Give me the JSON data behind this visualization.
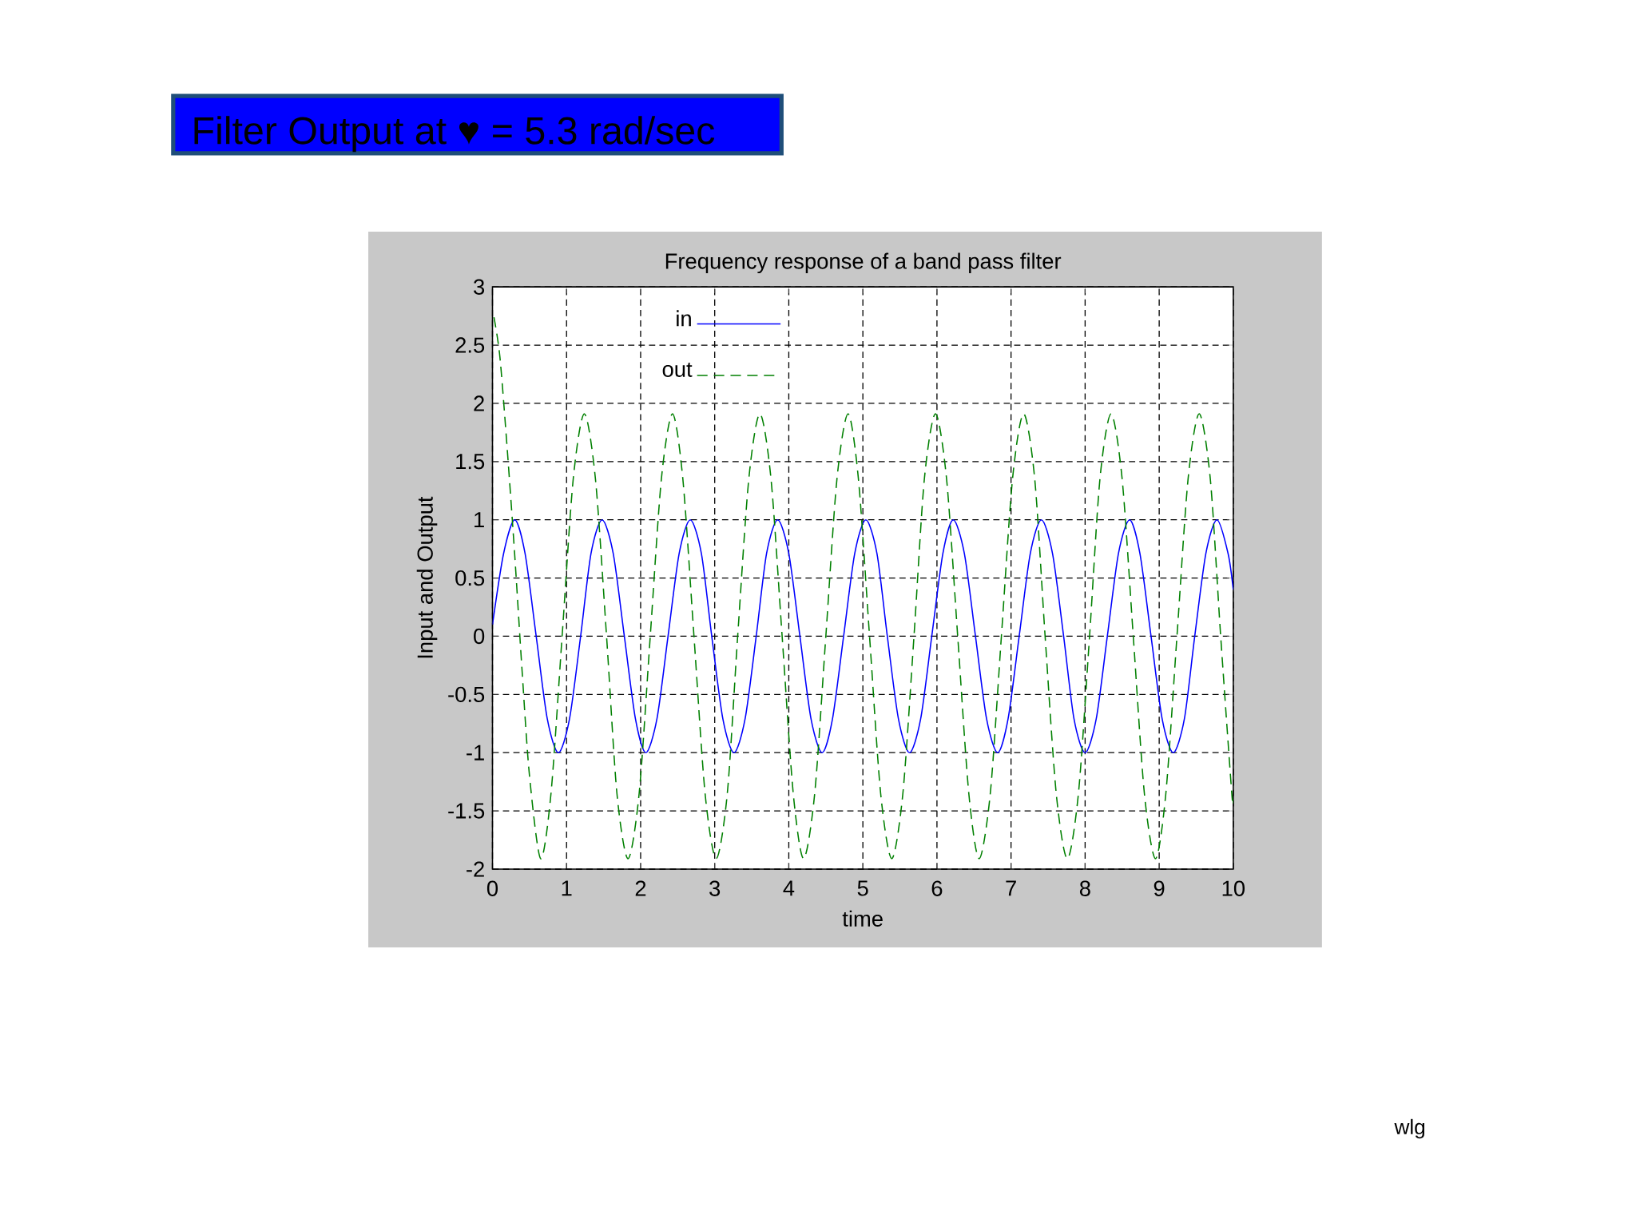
{
  "chart_data": {
    "type": "line",
    "title": "Filter Output at ♥ = 5.3 rad/sec",
    "subtitle": "Frequency response of a band pass filter",
    "xlabel": "time",
    "ylabel": "Input and Output",
    "annotations": [
      "wlg"
    ],
    "xlim": [
      0,
      10
    ],
    "ylim": [
      -2,
      3
    ],
    "xticks": [
      0,
      1,
      2,
      3,
      4,
      5,
      6,
      7,
      8,
      9,
      10
    ],
    "yticks": [
      -2,
      -1.5,
      -1,
      -0.5,
      0,
      0.5,
      1,
      1.5,
      2,
      2.5,
      3
    ],
    "grid": true,
    "legend": "top left",
    "marker": "none",
    "series": [
      {
        "name": "in",
        "color": "#0000ff",
        "line_style": "solid",
        "x": [
          0,
          0.15,
          0.3,
          0.44,
          0.59,
          0.74,
          0.89,
          1.04,
          1.19,
          1.33,
          1.48,
          1.63,
          1.78,
          1.93,
          2.07,
          2.22,
          2.37,
          2.52,
          2.67,
          2.82,
          2.96,
          3.11,
          3.26,
          3.41,
          3.56,
          3.7,
          3.85,
          4.0,
          4.15,
          4.3,
          4.45,
          4.59,
          4.74,
          4.89,
          5.04,
          5.19,
          5.33,
          5.48,
          5.63,
          5.78,
          5.93,
          6.08,
          6.22,
          6.37,
          6.52,
          6.67,
          6.82,
          6.96,
          7.11,
          7.26,
          7.41,
          7.56,
          7.71,
          7.85,
          8.0,
          8.15,
          8.3,
          8.45,
          8.6,
          8.74,
          8.89,
          9.04,
          9.19,
          9.34,
          9.48,
          9.63,
          9.78,
          9.93,
          10
        ],
        "values": [
          0.1,
          0.71,
          1,
          0.71,
          0,
          -0.71,
          -1,
          -0.71,
          0,
          0.71,
          1,
          0.71,
          0,
          -0.71,
          -1,
          -0.71,
          0,
          0.71,
          1,
          0.71,
          0,
          -0.71,
          -1,
          -0.71,
          0,
          0.71,
          1,
          0.71,
          0,
          -0.71,
          -1,
          -0.71,
          0,
          0.71,
          1,
          0.71,
          0,
          -0.71,
          -1,
          -0.71,
          0,
          0.71,
          1,
          0.71,
          0,
          -0.71,
          -1,
          -0.71,
          0,
          0.71,
          1,
          0.71,
          0,
          -0.71,
          -1,
          -0.71,
          0,
          0.71,
          1,
          0.71,
          0,
          -0.71,
          -1,
          -0.71,
          0,
          0.71,
          1,
          0.71,
          0.4
        ]
      },
      {
        "name": "out",
        "color": "#008000",
        "line_style": "dashed",
        "x": [
          0.02,
          0.1,
          0.2,
          0.3,
          0.4,
          0.5,
          0.65,
          0.79,
          0.94,
          1.09,
          1.24,
          1.39,
          1.54,
          1.68,
          1.83,
          1.98,
          2.13,
          2.28,
          2.43,
          2.57,
          2.72,
          2.87,
          3.02,
          3.17,
          3.31,
          3.46,
          3.61,
          3.76,
          3.91,
          4.06,
          4.2,
          4.35,
          4.5,
          4.65,
          4.8,
          4.94,
          5.09,
          5.24,
          5.39,
          5.54,
          5.69,
          5.83,
          5.98,
          6.13,
          6.28,
          6.43,
          6.57,
          6.72,
          6.87,
          7.02,
          7.17,
          7.32,
          7.46,
          7.61,
          7.76,
          7.91,
          8.06,
          8.2,
          8.35,
          8.5,
          8.65,
          8.8,
          8.95,
          9.09,
          9.24,
          9.39,
          9.54,
          9.69,
          9.83,
          9.98,
          10
        ],
        "values": [
          2.74,
          2.4,
          1.6,
          0.7,
          -0.3,
          -1.2,
          -1.91,
          -1.35,
          0,
          1.35,
          1.91,
          1.35,
          0,
          -1.35,
          -1.91,
          -1.35,
          0,
          1.35,
          1.91,
          1.35,
          0,
          -1.35,
          -1.91,
          -1.35,
          0,
          1.35,
          1.91,
          1.35,
          0,
          -1.35,
          -1.91,
          -1.35,
          0,
          1.35,
          1.91,
          1.35,
          0,
          -1.35,
          -1.91,
          -1.35,
          0,
          1.35,
          1.91,
          1.35,
          0,
          -1.35,
          -1.91,
          -1.35,
          0,
          1.35,
          1.91,
          1.35,
          0,
          -1.35,
          -1.91,
          -1.35,
          0,
          1.35,
          1.91,
          1.35,
          0,
          -1.35,
          -1.91,
          -1.35,
          0,
          1.35,
          1.91,
          1.35,
          0,
          -1.35,
          -1.4
        ]
      }
    ]
  }
}
